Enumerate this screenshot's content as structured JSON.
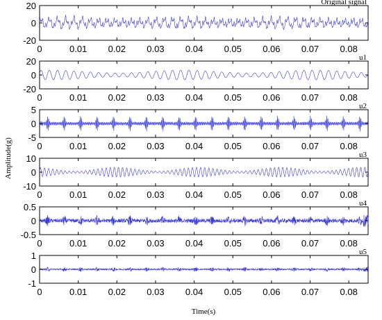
{
  "figure": {
    "xlabel": "Time(s)",
    "ylabel": "Amplitude(g)"
  },
  "chart_data": [
    {
      "type": "line",
      "title": "Original signal",
      "xlim": [
        0,
        0.085
      ],
      "ylim": [
        -20,
        20
      ],
      "xticks": [
        "0",
        "0.01",
        "0.02",
        "0.03",
        "0.04",
        "0.05",
        "0.06",
        "0.07",
        "0.08"
      ],
      "yticks": [
        "20",
        "0",
        "-20"
      ],
      "series_color": "#3b3bd8",
      "signal": {
        "amplitude": 9,
        "samples": 900
      }
    },
    {
      "type": "line",
      "title": "u1",
      "xlim": [
        0,
        0.085
      ],
      "ylim": [
        -20,
        20
      ],
      "xticks": [
        "0",
        "0.01",
        "0.02",
        "0.03",
        "0.04",
        "0.05",
        "0.06",
        "0.07",
        "0.08"
      ],
      "yticks": [
        "20",
        "0",
        "-20"
      ],
      "series_color": "#3b3bd8",
      "signal": {
        "amplitude": 7,
        "samples": 900
      }
    },
    {
      "type": "line",
      "title": "u2",
      "xlim": [
        0,
        0.085
      ],
      "ylim": [
        -5,
        5
      ],
      "xticks": [
        "0",
        "0.01",
        "0.02",
        "0.03",
        "0.04",
        "0.05",
        "0.06",
        "0.07",
        "0.08"
      ],
      "yticks": [
        "5",
        "0",
        "-5"
      ],
      "series_color": "#3b3bd8",
      "signal": {
        "amplitude": 2.8,
        "samples": 1400
      }
    },
    {
      "type": "line",
      "title": "u3",
      "xlim": [
        0,
        0.085
      ],
      "ylim": [
        -10,
        10
      ],
      "xticks": [
        "0",
        "0.01",
        "0.02",
        "0.03",
        "0.04",
        "0.05",
        "0.06",
        "0.07",
        "0.08"
      ],
      "yticks": [
        "10",
        "0",
        "-10"
      ],
      "series_color": "#3b3bd8",
      "signal": {
        "amplitude": 3.5,
        "samples": 1100
      }
    },
    {
      "type": "line",
      "title": "u4",
      "xlim": [
        0,
        0.085
      ],
      "ylim": [
        -0.5,
        0.5
      ],
      "xticks": [
        "0",
        "0.01",
        "0.02",
        "0.03",
        "0.04",
        "0.05",
        "0.06",
        "0.07",
        "0.08"
      ],
      "yticks": [
        "0.5",
        "0",
        "-0.5"
      ],
      "series_color": "#3b3bd8",
      "signal": {
        "amplitude": 0.2,
        "samples": 1600
      }
    },
    {
      "type": "line",
      "title": "u5",
      "xlim": [
        0,
        0.085
      ],
      "ylim": [
        -1,
        1
      ],
      "xticks": [
        "0",
        "0.01",
        "0.02",
        "0.03",
        "0.04",
        "0.05",
        "0.06",
        "0.07",
        "0.08"
      ],
      "yticks": [
        "1",
        "0",
        "-1"
      ],
      "series_color": "#3b3bd8",
      "signal": {
        "amplitude": 0.18,
        "samples": 1600
      }
    }
  ]
}
